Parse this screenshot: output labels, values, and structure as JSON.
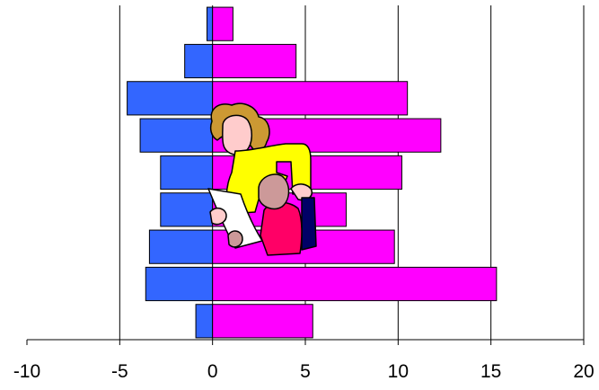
{
  "chart_data": {
    "type": "bar",
    "orientation": "horizontal",
    "stacked": "diverging",
    "title": "",
    "xlabel": "",
    "ylabel": "",
    "xlim": [
      -10,
      20
    ],
    "x_ticks": [
      -10,
      -5,
      0,
      5,
      10,
      15,
      20
    ],
    "x_tick_labels": [
      "-10",
      "-5",
      "0",
      "5",
      "10",
      "15",
      "20"
    ],
    "grid": "vertical",
    "legend": "none",
    "rows": 9,
    "series": [
      {
        "color": "#3366FF",
        "values": [
          -0.3,
          -1.5,
          -4.6,
          -3.9,
          -2.8,
          -2.8,
          -3.4,
          -3.6,
          -0.9
        ]
      },
      {
        "color": "#FF00FF",
        "values": [
          1.1,
          4.5,
          10.5,
          12.3,
          10.2,
          7.2,
          9.8,
          15.3,
          5.4
        ]
      }
    ],
    "illustration": "teacher-reading-to-child"
  }
}
